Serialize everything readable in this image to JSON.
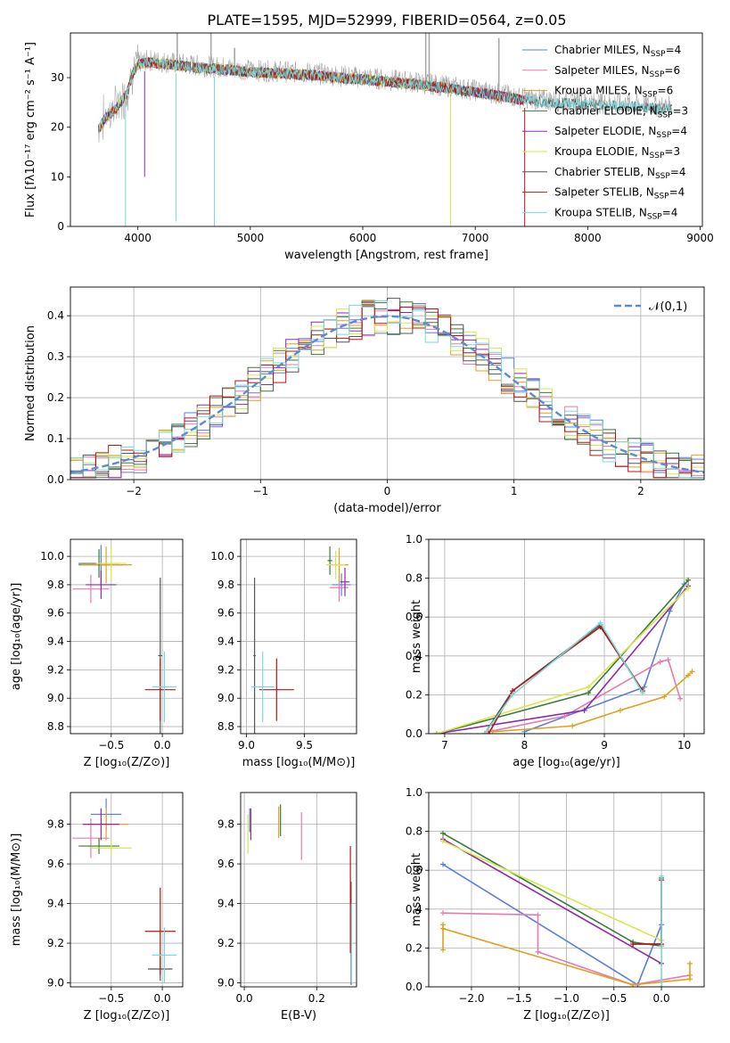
{
  "figure": {
    "title": "PLATE=1595, MJD=52999, FIBERID=0564, z=0.05"
  },
  "colors": {
    "Chabrier MILES": "#5b7fd6",
    "Salpeter MILES": "#e67ab0",
    "Kroupa MILES": "#e0a020",
    "Chabrier ELODIE": "#3a7a3a",
    "Salpeter ELODIE": "#8e2aa8",
    "Kroupa ELODIE": "#d8e64a",
    "Chabrier STELIB": "#555555",
    "Salpeter STELIB": "#b81414",
    "Kroupa STELIB": "#7ad8d8",
    "grid": "#b0b0b0",
    "gauss": "#5b8bd6",
    "data": "#a8a8a8",
    "extra_orange": "#e07a20",
    "extra_lime": "#b8e040"
  },
  "chart_data": [
    {
      "id": "spectrum",
      "type": "line",
      "title": "PLATE=1595, MJD=52999, FIBERID=0564, z=0.05",
      "xlabel": "wavelength [Angstrom, rest frame]",
      "ylabel": "Flux [fλ10⁻¹⁷ erg cm⁻² s⁻¹ A⁻¹]",
      "xlim": [
        3400,
        9020
      ],
      "ylim": [
        0,
        39
      ],
      "xticks": [
        4000,
        5000,
        6000,
        7000,
        8000,
        9000
      ],
      "yticks": [
        0,
        10,
        20,
        30
      ],
      "legend_position": "upper right",
      "legend": [
        {
          "label": "Chabrier MILES, N",
          "sub": "SSP",
          "suffix": "=4"
        },
        {
          "label": "Salpeter MILES, N",
          "sub": "SSP",
          "suffix": "=6"
        },
        {
          "label": "Kroupa MILES, N",
          "sub": "SSP",
          "suffix": "=6"
        },
        {
          "label": "Chabrier ELODIE, N",
          "sub": "SSP",
          "suffix": "=3"
        },
        {
          "label": "Salpeter ELODIE, N",
          "sub": "SSP",
          "suffix": "=4"
        },
        {
          "label": "Kroupa ELODIE, N",
          "sub": "SSP",
          "suffix": "=3"
        },
        {
          "label": "Chabrier STELIB, N",
          "sub": "SSP",
          "suffix": "=4"
        },
        {
          "label": "Salpeter STELIB, N",
          "sub": "SSP",
          "suffix": "=4"
        },
        {
          "label": "Kroupa STELIB, N",
          "sub": "SSP",
          "suffix": "=4"
        }
      ],
      "continuum": [
        [
          3650,
          20
        ],
        [
          3700,
          22
        ],
        [
          3800,
          24
        ],
        [
          3900,
          27
        ],
        [
          3950,
          31
        ],
        [
          4000,
          33
        ],
        [
          4100,
          33.5
        ],
        [
          4300,
          33
        ],
        [
          4500,
          32.5
        ],
        [
          4800,
          32
        ],
        [
          5000,
          31.5
        ],
        [
          5500,
          31
        ],
        [
          6000,
          30
        ],
        [
          6500,
          29
        ],
        [
          7000,
          27.5
        ],
        [
          7400,
          26
        ],
        [
          7600,
          25.5
        ],
        [
          8000,
          25
        ],
        [
          8500,
          24.5
        ],
        [
          8750,
          24
        ]
      ],
      "absorption_dips": [
        [
          3890,
          0
        ],
        [
          4060,
          10
        ],
        [
          4340,
          1
        ],
        [
          4680,
          0
        ],
        [
          6780,
          0
        ],
        [
          7440,
          0
        ]
      ],
      "spikes": [
        [
          4350,
          39
        ],
        [
          4650,
          39
        ],
        [
          4860,
          36
        ],
        [
          6560,
          39
        ],
        [
          6590,
          39
        ],
        [
          7210,
          38
        ]
      ]
    },
    {
      "id": "residuals",
      "type": "step",
      "xlabel": "(data-model)/error",
      "ylabel": "Normed distribution",
      "xlim": [
        -2.5,
        2.5
      ],
      "ylim": [
        0,
        0.47
      ],
      "xticks": [
        -2,
        -1,
        0,
        1,
        2
      ],
      "yticks": [
        0.0,
        0.1,
        0.2,
        0.3,
        0.4
      ],
      "bin_width": 0.1,
      "bin_start": -2.5,
      "legend_position": "upper right",
      "gaussian": {
        "label": "𝒩(0,1)",
        "mean": 0,
        "sigma": 1
      }
    },
    {
      "id": "age_vs_Z",
      "type": "errorbar",
      "xlabel": "Z [log₁₀(Z/Z⊙)]",
      "ylabel": "age  [log₁₀(age/yr)]",
      "xlim": [
        -0.9,
        0.2
      ],
      "ylim": [
        8.75,
        10.12
      ],
      "xticks": [
        -0.5,
        0.0
      ],
      "yticks": [
        8.8,
        9.0,
        9.2,
        9.4,
        9.6,
        9.8,
        10.0
      ],
      "points": [
        {
          "series": "Chabrier MILES",
          "x": -0.6,
          "xerr": 0.22,
          "y": 9.94,
          "yerr": 0.14
        },
        {
          "series": "Salpeter MILES",
          "x": -0.7,
          "xerr": 0.18,
          "y": 9.77,
          "yerr": 0.1
        },
        {
          "series": "Kroupa MILES",
          "x": -0.55,
          "xerr": 0.25,
          "y": 9.94,
          "yerr": 0.13
        },
        {
          "series": "Chabrier ELODIE",
          "x": -0.62,
          "xerr": 0.2,
          "y": 9.95,
          "yerr": 0.1
        },
        {
          "series": "Salpeter ELODIE",
          "x": -0.6,
          "xerr": 0.15,
          "y": 9.8,
          "yerr": 0.1
        },
        {
          "series": "Kroupa ELODIE",
          "x": -0.5,
          "xerr": 0.15,
          "y": 9.95,
          "yerr": 0.12
        },
        {
          "series": "Chabrier STELIB",
          "x": -0.02,
          "xerr": 0.02,
          "y": 9.3,
          "yerr": 0.55
        },
        {
          "series": "Salpeter STELIB",
          "x": -0.02,
          "xerr": 0.15,
          "y": 9.06,
          "yerr": 0.22
        },
        {
          "series": "Kroupa STELIB",
          "x": 0.02,
          "xerr": 0.12,
          "y": 9.08,
          "yerr": 0.25
        }
      ]
    },
    {
      "id": "age_vs_mass",
      "type": "errorbar",
      "xlabel": "mass [log₁₀(M/M⊙)]",
      "ylabel": "",
      "xlim": [
        8.95,
        9.95
      ],
      "ylim": [
        8.75,
        10.12
      ],
      "xticks": [
        9.0,
        9.5
      ],
      "yticks": [
        8.8,
        9.0,
        9.2,
        9.4,
        9.6,
        9.8,
        10.0
      ],
      "points": [
        {
          "series": "Chabrier MILES",
          "x": 9.82,
          "xerr": 0.08,
          "y": 9.8,
          "yerr": 0.08
        },
        {
          "series": "Salpeter MILES",
          "x": 9.8,
          "xerr": 0.08,
          "y": 9.78,
          "yerr": 0.1
        },
        {
          "series": "Kroupa MILES",
          "x": 9.8,
          "xerr": 0.08,
          "y": 9.94,
          "yerr": 0.12
        },
        {
          "series": "Chabrier ELODIE",
          "x": 9.72,
          "xerr": 0.02,
          "y": 9.97,
          "yerr": 0.1
        },
        {
          "series": "Salpeter ELODIE",
          "x": 9.85,
          "xerr": 0.04,
          "y": 9.82,
          "yerr": 0.1
        },
        {
          "series": "Kroupa ELODIE",
          "x": 9.77,
          "xerr": 0.08,
          "y": 9.94,
          "yerr": 0.1
        },
        {
          "series": "Chabrier STELIB",
          "x": 9.07,
          "xerr": 0.01,
          "y": 9.3,
          "yerr": 0.55
        },
        {
          "series": "Salpeter STELIB",
          "x": 9.26,
          "xerr": 0.15,
          "y": 9.06,
          "yerr": 0.22
        },
        {
          "series": "Kroupa STELIB",
          "x": 9.14,
          "xerr": 0.1,
          "y": 9.08,
          "yerr": 0.25
        }
      ]
    },
    {
      "id": "mass_weight_vs_age",
      "type": "line",
      "xlabel": "age  [log₁₀(age/yr)]",
      "ylabel": "mass weight",
      "xlim": [
        6.8,
        10.25
      ],
      "ylim": [
        0,
        1.0
      ],
      "xticks": [
        7,
        8,
        9,
        10
      ],
      "yticks": [
        0.0,
        0.2,
        0.4,
        0.6,
        0.8,
        1.0
      ],
      "series": [
        {
          "name": "Chabrier MILES",
          "x": [
            8.0,
            9.5,
            9.82,
            10.0
          ],
          "y": [
            0.01,
            0.24,
            0.63,
            0.77
          ]
        },
        {
          "name": "Salpeter MILES",
          "x": [
            7.55,
            8.5,
            9.7,
            9.8,
            9.95
          ],
          "y": [
            0.01,
            0.09,
            0.37,
            0.38,
            0.18
          ]
        },
        {
          "name": "Kroupa MILES",
          "x": [
            7.6,
            8.6,
            9.2,
            9.75,
            10.05,
            10.1
          ],
          "y": [
            0.01,
            0.04,
            0.12,
            0.19,
            0.3,
            0.32
          ]
        },
        {
          "name": "Chabrier ELODIE",
          "x": [
            6.9,
            8.8,
            10.05
          ],
          "y": [
            0.0,
            0.21,
            0.79
          ]
        },
        {
          "name": "Salpeter ELODIE",
          "x": [
            6.9,
            8.75,
            10.05
          ],
          "y": [
            0.0,
            0.12,
            0.76
          ]
        },
        {
          "name": "Kroupa ELODIE",
          "x": [
            6.9,
            8.8,
            10.05
          ],
          "y": [
            0.0,
            0.24,
            0.75
          ]
        },
        {
          "name": "Chabrier STELIB",
          "x": [
            7.5,
            7.85,
            8.95,
            9.48
          ],
          "y": [
            0.0,
            0.22,
            0.56,
            0.22
          ]
        },
        {
          "name": "Salpeter STELIB",
          "x": [
            7.55,
            7.85,
            8.95,
            9.48
          ],
          "y": [
            0.0,
            0.22,
            0.55,
            0.22
          ]
        },
        {
          "name": "Kroupa STELIB",
          "x": [
            7.5,
            7.85,
            8.95,
            9.48
          ],
          "y": [
            0.0,
            0.2,
            0.57,
            0.21
          ]
        }
      ]
    },
    {
      "id": "mass_vs_Z",
      "type": "errorbar",
      "xlabel": "Z [log₁₀(Z/Z⊙)]",
      "ylabel": "mass [log₁₀(M/M⊙)]",
      "xlim": [
        -0.9,
        0.2
      ],
      "ylim": [
        8.98,
        9.96
      ],
      "xticks": [
        -0.5,
        0.0
      ],
      "yticks": [
        9.0,
        9.2,
        9.4,
        9.6,
        9.8
      ],
      "points": [
        {
          "series": "Chabrier MILES",
          "x": -0.55,
          "xerr": 0.15,
          "y": 9.85,
          "yerr": 0.08
        },
        {
          "series": "Salpeter MILES",
          "x": -0.7,
          "xerr": 0.18,
          "y": 9.73,
          "yerr": 0.1
        },
        {
          "series": "Kroupa MILES",
          "x": -0.55,
          "xerr": 0.22,
          "y": 9.8,
          "yerr": 0.08
        },
        {
          "series": "Chabrier ELODIE",
          "x": -0.62,
          "xerr": 0.2,
          "y": 9.69,
          "yerr": 0.04
        },
        {
          "series": "Salpeter ELODIE",
          "x": -0.6,
          "xerr": 0.18,
          "y": 9.8,
          "yerr": 0.08
        },
        {
          "series": "Kroupa ELODIE",
          "x": -0.5,
          "xerr": 0.2,
          "y": 9.68,
          "yerr": 0.04
        },
        {
          "series": "Chabrier STELIB",
          "x": -0.02,
          "xerr": 0.12,
          "y": 9.07,
          "yerr": 0.06
        },
        {
          "series": "Salpeter STELIB",
          "x": -0.02,
          "xerr": 0.15,
          "y": 9.26,
          "yerr": 0.22
        },
        {
          "series": "Kroupa STELIB",
          "x": 0.02,
          "xerr": 0.12,
          "y": 9.14,
          "yerr": 0.14
        }
      ]
    },
    {
      "id": "mass_vs_EBV",
      "type": "errorbar",
      "xlabel": "E(B-V)",
      "ylabel": "",
      "xlim": [
        -0.01,
        0.31
      ],
      "ylim": [
        8.98,
        9.96
      ],
      "xticks": [
        0.0,
        0.2
      ],
      "yticks": [
        9.0,
        9.2,
        9.4,
        9.6,
        9.8
      ],
      "points": [
        {
          "series": "Chabrier MILES",
          "x": 0.015,
          "xerr": 0.0,
          "y": 9.82,
          "yerr": 0.06
        },
        {
          "series": "Salpeter MILES",
          "x": 0.158,
          "xerr": 0.0,
          "y": 9.74,
          "yerr": 0.12
        },
        {
          "series": "Kroupa MILES",
          "x": 0.095,
          "xerr": 0.0,
          "y": 9.81,
          "yerr": 0.08
        },
        {
          "series": "Chabrier ELODIE",
          "x": 0.1,
          "xerr": 0.0,
          "y": 9.82,
          "yerr": 0.08
        },
        {
          "series": "Salpeter ELODIE",
          "x": 0.018,
          "xerr": 0.0,
          "y": 9.8,
          "yerr": 0.08
        },
        {
          "series": "Kroupa ELODIE",
          "x": 0.01,
          "xerr": 0.0,
          "y": 9.75,
          "yerr": 0.1
        },
        {
          "series": "Chabrier STELIB",
          "x": 0.295,
          "xerr": 0.0,
          "y": 9.25,
          "yerr": 0.26
        },
        {
          "series": "Salpeter STELIB",
          "x": 0.293,
          "xerr": 0.0,
          "y": 9.42,
          "yerr": 0.27
        },
        {
          "series": "Kroupa STELIB",
          "x": 0.296,
          "xerr": 0.0,
          "y": 9.2,
          "yerr": 0.2
        }
      ]
    },
    {
      "id": "mass_weight_vs_Z",
      "type": "line",
      "xlabel": "Z [log₁₀(Z/Z⊙)]",
      "ylabel": "mass weight",
      "xlim": [
        -2.45,
        0.45
      ],
      "ylim": [
        0,
        1.0
      ],
      "xticks": [
        -2.0,
        -1.5,
        -1.0,
        -0.5,
        0.0
      ],
      "yticks": [
        0.0,
        0.2,
        0.4,
        0.6,
        0.8,
        1.0
      ],
      "series": [
        {
          "name": "Chabrier MILES",
          "x": [
            -2.3,
            -0.25,
            0.0,
            0.0
          ],
          "y": [
            0.63,
            0.01,
            0.32,
            0.24
          ]
        },
        {
          "name": "Salpeter MILES",
          "x": [
            -2.3,
            -1.3,
            -1.3,
            -0.3,
            0.3
          ],
          "y": [
            0.38,
            0.37,
            0.18,
            0.01,
            0.06
          ]
        },
        {
          "name": "Kroupa MILES",
          "x": [
            -2.3,
            -2.3,
            -2.3,
            -0.3,
            0.3,
            0.3,
            0.3
          ],
          "y": [
            0.19,
            0.32,
            0.3,
            0.01,
            0.04,
            0.12,
            0.06
          ]
        },
        {
          "name": "Chabrier ELODIE",
          "x": [
            -2.3,
            -0.3,
            0.0
          ],
          "y": [
            0.79,
            0.23,
            0.21
          ]
        },
        {
          "name": "Salpeter ELODIE",
          "x": [
            -2.3,
            0.0
          ],
          "y": [
            0.76,
            0.12
          ]
        },
        {
          "name": "Kroupa ELODIE",
          "x": [
            -2.3,
            0.0
          ],
          "y": [
            0.75,
            0.24
          ]
        },
        {
          "name": "Chabrier STELIB",
          "x": [
            -0.3,
            0.0,
            0.0
          ],
          "y": [
            0.22,
            0.22,
            0.56
          ]
        },
        {
          "name": "Salpeter STELIB",
          "x": [
            -0.3,
            0.0,
            0.0
          ],
          "y": [
            0.22,
            0.22,
            0.55
          ]
        },
        {
          "name": "Kroupa STELIB",
          "x": [
            0.0,
            0.0,
            0.0
          ],
          "y": [
            0.0,
            0.21,
            0.57
          ]
        }
      ]
    }
  ]
}
